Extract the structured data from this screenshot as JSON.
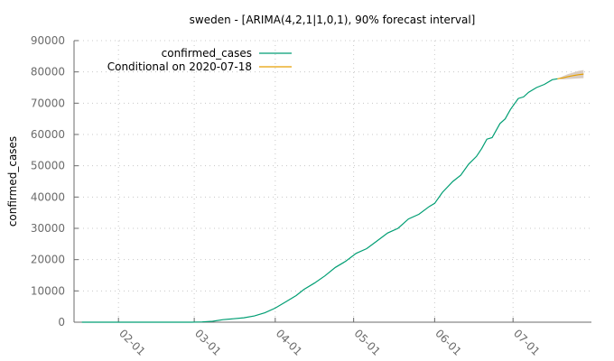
{
  "chart_data": {
    "type": "line",
    "title": "sweden -  [ARIMA(4,2,1|1,0,1), 90% forecast interval]",
    "xlabel": "",
    "ylabel": "confirmed_cases",
    "x_axis": {
      "type": "date",
      "start": "2020-01-15",
      "end": "2020-07-31"
    },
    "ylim": [
      0,
      90000
    ],
    "y_ticks": [
      0,
      10000,
      20000,
      30000,
      40000,
      50000,
      60000,
      70000,
      80000,
      90000
    ],
    "x_ticks": [
      {
        "date": "2020-02-01",
        "label": "02-01"
      },
      {
        "date": "2020-03-01",
        "label": "03-01"
      },
      {
        "date": "2020-04-01",
        "label": "04-01"
      },
      {
        "date": "2020-05-01",
        "label": "05-01"
      },
      {
        "date": "2020-06-01",
        "label": "06-01"
      },
      {
        "date": "2020-07-01",
        "label": "07-01"
      }
    ],
    "grid": true,
    "legend_position": "top-left",
    "series": [
      {
        "name": "confirmed_cases",
        "color": "#009e73",
        "points": [
          [
            "2020-01-18",
            0
          ],
          [
            "2020-02-15",
            0
          ],
          [
            "2020-02-29",
            10
          ],
          [
            "2020-03-04",
            100
          ],
          [
            "2020-03-08",
            300
          ],
          [
            "2020-03-12",
            800
          ],
          [
            "2020-03-16",
            1100
          ],
          [
            "2020-03-20",
            1400
          ],
          [
            "2020-03-24",
            2000
          ],
          [
            "2020-03-28",
            3000
          ],
          [
            "2020-04-01",
            4500
          ],
          [
            "2020-04-05",
            6500
          ],
          [
            "2020-04-09",
            8500
          ],
          [
            "2020-04-12",
            10500
          ],
          [
            "2020-04-16",
            12500
          ],
          [
            "2020-04-20",
            14800
          ],
          [
            "2020-04-24",
            17500
          ],
          [
            "2020-04-28",
            19500
          ],
          [
            "2020-05-02",
            22000
          ],
          [
            "2020-05-06",
            23500
          ],
          [
            "2020-05-10",
            26000
          ],
          [
            "2020-05-14",
            28500
          ],
          [
            "2020-05-18",
            30000
          ],
          [
            "2020-05-22",
            33000
          ],
          [
            "2020-05-26",
            34500
          ],
          [
            "2020-05-30",
            37000
          ],
          [
            "2020-06-01",
            38000
          ],
          [
            "2020-06-04",
            41500
          ],
          [
            "2020-06-08",
            45000
          ],
          [
            "2020-06-11",
            47000
          ],
          [
            "2020-06-14",
            50500
          ],
          [
            "2020-06-17",
            53000
          ],
          [
            "2020-06-19",
            55500
          ],
          [
            "2020-06-21",
            58500
          ],
          [
            "2020-06-23",
            59000
          ],
          [
            "2020-06-26",
            63500
          ],
          [
            "2020-06-28",
            65000
          ],
          [
            "2020-06-30",
            68000
          ],
          [
            "2020-07-03",
            71500
          ],
          [
            "2020-07-05",
            72000
          ],
          [
            "2020-07-07",
            73500
          ],
          [
            "2020-07-10",
            75000
          ],
          [
            "2020-07-13",
            76000
          ],
          [
            "2020-07-16",
            77500
          ],
          [
            "2020-07-18",
            77800
          ]
        ]
      },
      {
        "name": "Conditional on 2020-07-18",
        "color": "#e69f00",
        "points": [
          [
            "2020-07-18",
            77800
          ],
          [
            "2020-07-20",
            78100
          ],
          [
            "2020-07-22",
            78500
          ],
          [
            "2020-07-24",
            78800
          ],
          [
            "2020-07-26",
            79100
          ],
          [
            "2020-07-28",
            79300
          ]
        ],
        "interval": {
          "level": "90%",
          "color": "#d2c4b8",
          "lower": [
            77800,
            77600,
            77700,
            77800,
            77900,
            78000
          ],
          "upper": [
            77800,
            78600,
            79300,
            79800,
            80300,
            80600
          ]
        }
      }
    ]
  }
}
